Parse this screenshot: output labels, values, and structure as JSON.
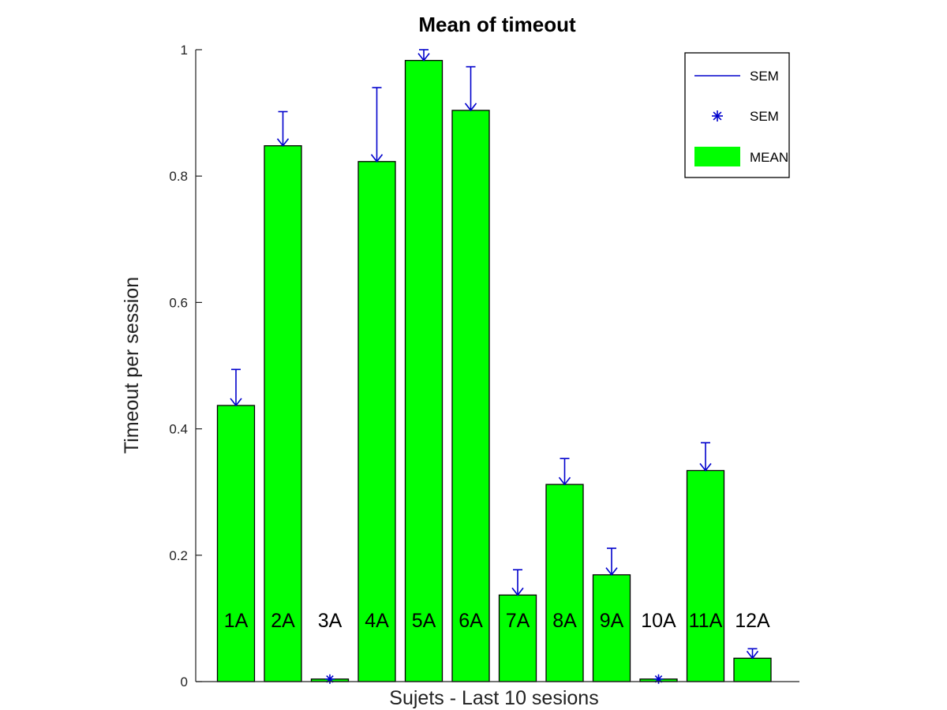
{
  "chart_data": {
    "type": "bar",
    "title": "Mean of timeout",
    "xlabel": "Sujets - Last 10 sesions",
    "ylabel": "Timeout per session",
    "categories": [
      "1A",
      "2A",
      "3A",
      "4A",
      "5A",
      "6A",
      "7A",
      "8A",
      "9A",
      "10A",
      "11A",
      "12A"
    ],
    "series": [
      {
        "name": "MEAN",
        "values": [
          0.437,
          0.848,
          0.004,
          0.823,
          0.983,
          0.904,
          0.137,
          0.312,
          0.169,
          0.004,
          0.334,
          0.037
        ]
      }
    ],
    "error_series": {
      "name": "SEM",
      "upper": [
        0.494,
        0.902,
        0.004,
        0.94,
        1.0,
        0.973,
        0.177,
        0.353,
        0.211,
        0.004,
        0.378,
        0.052
      ]
    },
    "yticks": [
      "0",
      "0.2",
      "0.4",
      "0.6",
      "0.8",
      "1"
    ],
    "ylim": [
      0,
      1
    ],
    "legend": {
      "placement": "top-right",
      "entries": [
        "SEM",
        "SEM",
        "MEAN"
      ]
    },
    "grid": false,
    "colors": {
      "bar_fill": "#00ff00",
      "bar_edge": "#000000",
      "error": "#0000cc"
    }
  }
}
